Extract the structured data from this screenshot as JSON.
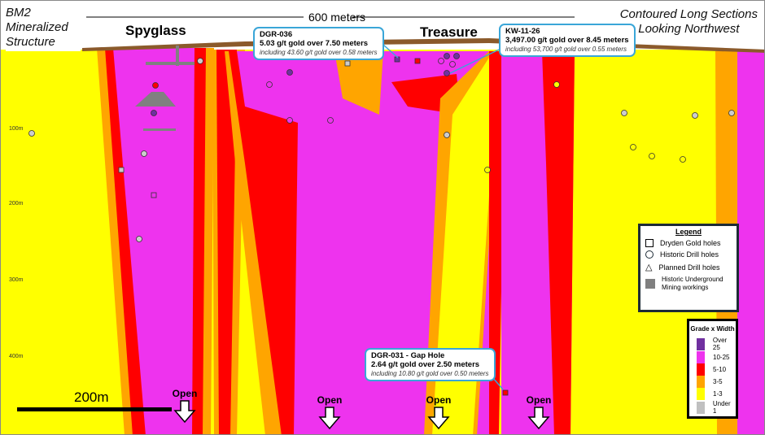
{
  "title": [
    "BM2",
    "Mineralized",
    "Structure"
  ],
  "subtitle": [
    "Contoured Long Sections",
    "Looking Northwest"
  ],
  "scale_top": "600 meters",
  "scale_bottom": "200m",
  "zones": {
    "spyglass": "Spyglass",
    "treasure": "Treasure"
  },
  "depths": [
    "100m",
    "200m",
    "300m",
    "400m"
  ],
  "callouts": [
    {
      "hole": "DGR-036",
      "main": "5.03 g/t gold over 7.50 meters",
      "incl": "including 43.60 g/t gold over 0.58 meters"
    },
    {
      "hole": "KW-11-26",
      "main": "3,497.00 g/t gold over 8.45 meters",
      "incl": "including 53,700 g/t gold over 0.55 meters"
    },
    {
      "hole": "DGR-031  - Gap Hole",
      "main": "2.64 g/t gold over 2.50 meters",
      "incl": "including 10.80 g/t gold over 0.50 meters"
    }
  ],
  "open_label": "Open",
  "legend": {
    "title": "Legend",
    "items": [
      "Dryden Gold holes",
      "Historic Drill holes",
      "Planned Drill holes",
      "Historic Underground Mining workings"
    ]
  },
  "grade": {
    "title": "Grade x Width",
    "items": [
      {
        "label": "Over 25",
        "color": "#7030a0"
      },
      {
        "label": "10-25",
        "color": "#ee33ee"
      },
      {
        "label": "5-10",
        "color": "#ff0000"
      },
      {
        "label": "3-5",
        "color": "#ffa500"
      },
      {
        "label": "1-3",
        "color": "#ffff00"
      },
      {
        "label": "Under 1",
        "color": "#c0c0c0"
      }
    ]
  }
}
